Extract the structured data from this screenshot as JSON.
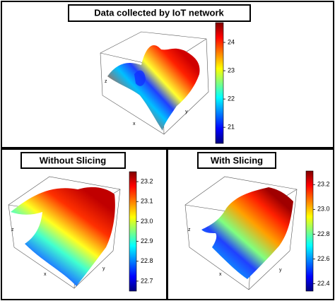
{
  "chart_data": [
    {
      "type": "surface",
      "title": "Data collected by IoT network",
      "axis_labels": [
        "x",
        "y",
        "z"
      ],
      "ylim": [
        20.43,
        24.7
      ],
      "yticks": [
        21,
        22,
        23,
        24
      ]
    },
    {
      "type": "surface",
      "title": "Without Slicing",
      "axis_labels": [
        "x",
        "y",
        "z"
      ],
      "ylim": [
        22.65,
        23.25
      ],
      "yticks": [
        22.7,
        22.8,
        22.9,
        {
          "value": 23,
          "label": "23.0"
        },
        23.1,
        23.2
      ]
    },
    {
      "type": "surface",
      "title": "With Slicing",
      "axis_labels": [
        "x",
        "y",
        "z"
      ],
      "ylim": [
        22.34,
        23.31
      ],
      "yticks": [
        22.4,
        22.6,
        22.8,
        {
          "value": 23,
          "label": "23.0"
        },
        23.2
      ]
    }
  ]
}
